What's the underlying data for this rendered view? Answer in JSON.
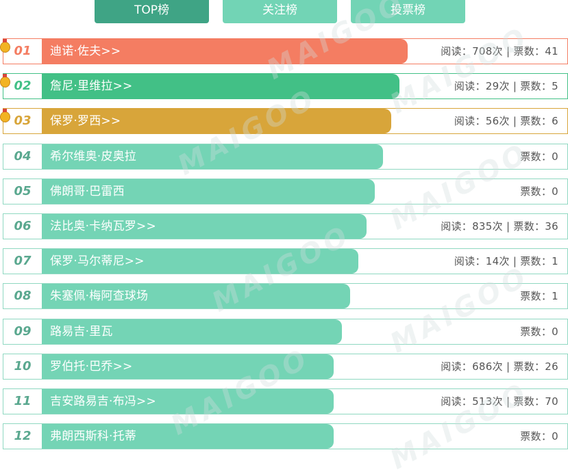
{
  "tabs": [
    {
      "label": "TOP榜",
      "active": true
    },
    {
      "label": "关注榜",
      "active": false
    },
    {
      "label": "投票榜",
      "active": false
    }
  ],
  "colors": {
    "bar_rank1": "#f47d62",
    "bar_rank2": "#42c086",
    "bar_rank3": "#d8a53a",
    "bar_default": "#74d4b5",
    "rank_default": "#5aa88f"
  },
  "watermark": "MAIGOO",
  "rows": [
    {
      "rank": "01",
      "name": "迪诺·佐夫>>",
      "stats": "阅读：708次 | 票数：41",
      "medal": true
    },
    {
      "rank": "02",
      "name": "詹尼·里维拉>>",
      "stats": "阅读：29次 | 票数：5",
      "medal": true
    },
    {
      "rank": "03",
      "name": "保罗·罗西>>",
      "stats": "阅读：56次 | 票数：6",
      "medal": true
    },
    {
      "rank": "04",
      "name": "希尔维奥·皮奥拉",
      "stats": "票数：0",
      "medal": false
    },
    {
      "rank": "05",
      "name": "佛朗哥·巴雷西",
      "stats": "票数：0",
      "medal": false
    },
    {
      "rank": "06",
      "name": "法比奥·卡纳瓦罗>>",
      "stats": "阅读：835次 | 票数：36",
      "medal": false
    },
    {
      "rank": "07",
      "name": "保罗·马尔蒂尼>>",
      "stats": "阅读：14次 | 票数：1",
      "medal": false
    },
    {
      "rank": "08",
      "name": "朱塞佩·梅阿查球场",
      "stats": "票数：1",
      "medal": false
    },
    {
      "rank": "09",
      "name": "路易吉·里瓦",
      "stats": "票数：0",
      "medal": false
    },
    {
      "rank": "10",
      "name": "罗伯托·巴乔>>",
      "stats": "阅读：686次 | 票数：26",
      "medal": false
    },
    {
      "rank": "11",
      "name": "吉安路易吉·布冯>>",
      "stats": "阅读：513次 | 票数：70",
      "medal": false
    },
    {
      "rank": "12",
      "name": "弗朗西斯科·托蒂",
      "stats": "票数：0",
      "medal": false
    }
  ]
}
